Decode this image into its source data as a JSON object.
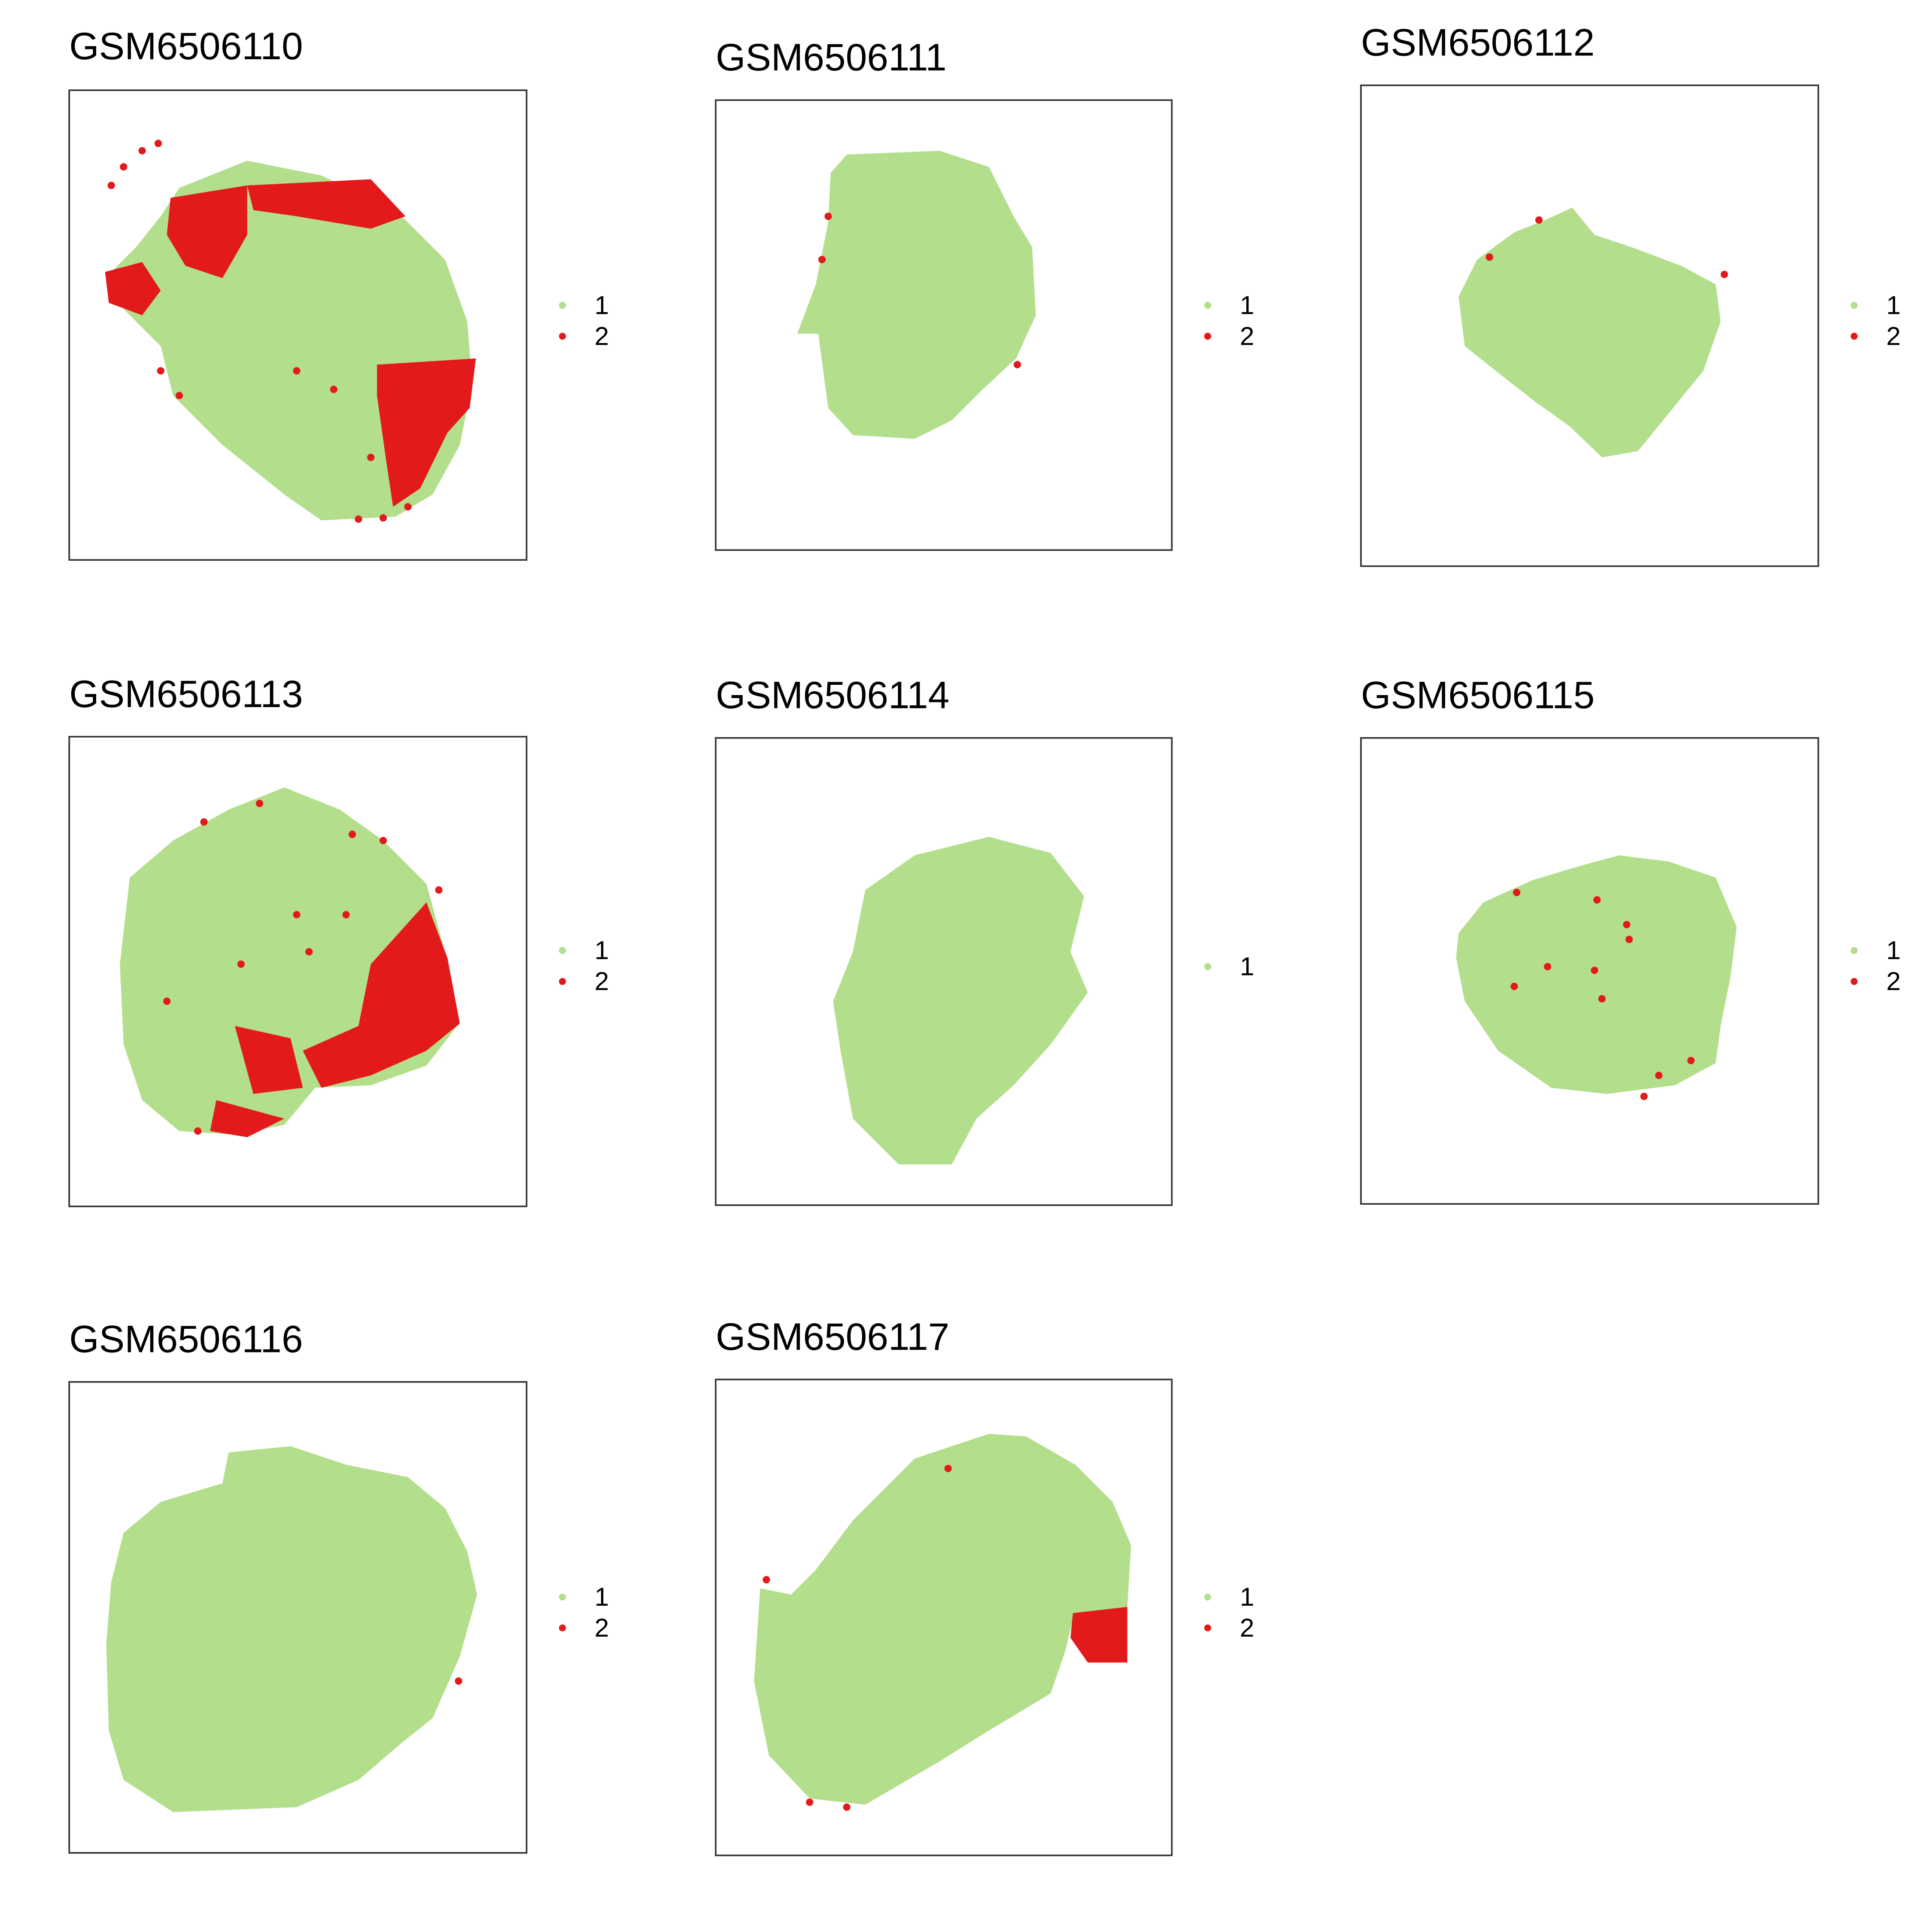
{
  "colors": {
    "cluster_1": "#b3de8c",
    "cluster_2": "#e31a1c",
    "frame": "#333333",
    "text": "#000000"
  },
  "chart_data": [
    {
      "type": "scatter",
      "title": "GSM6506110",
      "legend": [
        {
          "label": "1",
          "color": "#b3de8c"
        },
        {
          "label": "2",
          "color": "#e31a1c"
        }
      ],
      "legend_position": "right",
      "axes_visible": false,
      "grid": false
    },
    {
      "type": "scatter",
      "title": "GSM6506111",
      "legend": [
        {
          "label": "1",
          "color": "#b3de8c"
        },
        {
          "label": "2",
          "color": "#e31a1c"
        }
      ],
      "legend_position": "right",
      "axes_visible": false,
      "grid": false
    },
    {
      "type": "scatter",
      "title": "GSM6506112",
      "legend": [
        {
          "label": "1",
          "color": "#b3de8c"
        },
        {
          "label": "2",
          "color": "#e31a1c"
        }
      ],
      "legend_position": "right",
      "axes_visible": false,
      "grid": false
    },
    {
      "type": "scatter",
      "title": "GSM6506113",
      "legend": [
        {
          "label": "1",
          "color": "#b3de8c"
        },
        {
          "label": "2",
          "color": "#e31a1c"
        }
      ],
      "legend_position": "right",
      "axes_visible": false,
      "grid": false
    },
    {
      "type": "scatter",
      "title": "GSM6506114",
      "legend": [
        {
          "label": "1",
          "color": "#b3de8c"
        }
      ],
      "legend_position": "right",
      "axes_visible": false,
      "grid": false
    },
    {
      "type": "scatter",
      "title": "GSM6506115",
      "legend": [
        {
          "label": "1",
          "color": "#b3de8c"
        },
        {
          "label": "2",
          "color": "#e31a1c"
        }
      ],
      "legend_position": "right",
      "axes_visible": false,
      "grid": false
    },
    {
      "type": "scatter",
      "title": "GSM6506116",
      "legend": [
        {
          "label": "1",
          "color": "#b3de8c"
        },
        {
          "label": "2",
          "color": "#e31a1c"
        }
      ],
      "legend_position": "right",
      "axes_visible": false,
      "grid": false
    },
    {
      "type": "scatter",
      "title": "GSM6506117",
      "legend": [
        {
          "label": "1",
          "color": "#b3de8c"
        },
        {
          "label": "2",
          "color": "#e31a1c"
        }
      ],
      "legend_position": "right",
      "axes_visible": false,
      "grid": false
    }
  ]
}
